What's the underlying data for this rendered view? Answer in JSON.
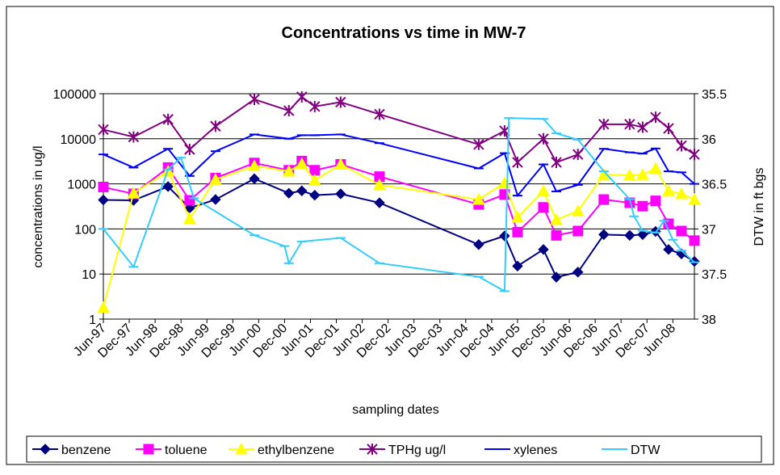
{
  "chart_data": {
    "type": "line",
    "title": "Concentrations vs time in MW-7",
    "x_label": "sampling dates",
    "y_label": "concentrations in ug/l",
    "y2_label": "DTW in ft bgs",
    "log_scale": true,
    "grid": true,
    "legend": "bottom",
    "xlim": [
      "Jun-97",
      "Nov-08"
    ],
    "xticks": [
      "Jun-97",
      "Dec-97",
      "Jun-98",
      "Dec-98",
      "Jun-99",
      "Dec-99",
      "Jun-00",
      "Dec-00",
      "Jun-01",
      "Dec-01",
      "Jun-02",
      "Dec-02",
      "Jun-03",
      "Dec-03",
      "Jun-04",
      "Dec-04",
      "Jun-05",
      "Dec-05",
      "Jun-06",
      "Dec-06",
      "Jun-07",
      "Dec-07",
      "Jun-08"
    ],
    "ylim": [
      1,
      100000
    ],
    "yticks": [
      1,
      10,
      100,
      1000,
      10000,
      100000
    ],
    "y2lim": [
      38,
      35.5
    ],
    "y2ticks": [
      35.5,
      36,
      36.5,
      37,
      37.5,
      38
    ],
    "series": [
      {
        "name": "benzene",
        "color": "#000080",
        "marker": "diamond",
        "x": [
          "Jun-97",
          "Jan-98",
          "Sep-98",
          "Feb-99",
          "Aug-99",
          "May-00",
          "Jan-01",
          "Apr-01",
          "Jul-01",
          "Jan-02",
          "Oct-02",
          "Sep-04",
          "Mar-05",
          "Jun-05",
          "Dec-05",
          "Mar-06",
          "Aug-06",
          "Feb-07",
          "Aug-07",
          "Nov-07",
          "Feb-08",
          "May-08",
          "Aug-08",
          "Nov-08"
        ],
        "values": [
          440,
          430,
          870,
          290,
          450,
          1300,
          620,
          700,
          560,
          600,
          380,
          45,
          70,
          15,
          35,
          8.5,
          11,
          75,
          72,
          75,
          88,
          35,
          28,
          19
        ]
      },
      {
        "name": "toluene",
        "color": "#ff00ff",
        "marker": "square",
        "x": [
          "Jun-97",
          "Jan-98",
          "Sep-98",
          "Feb-99",
          "Aug-99",
          "May-00",
          "Jan-01",
          "Apr-01",
          "Jul-01",
          "Jan-02",
          "Oct-02",
          "Sep-04",
          "Mar-05",
          "Jun-05",
          "Dec-05",
          "Mar-06",
          "Aug-06",
          "Feb-07",
          "Aug-07",
          "Nov-07",
          "Feb-08",
          "May-08",
          "Aug-08",
          "Nov-08"
        ],
        "values": [
          850,
          600,
          2300,
          430,
          1350,
          2900,
          2000,
          3200,
          2000,
          2700,
          1450,
          350,
          580,
          85,
          300,
          72,
          90,
          450,
          380,
          320,
          420,
          130,
          90,
          55
        ]
      },
      {
        "name": "ethylbenzene",
        "color": "#ffff00",
        "marker": "triangle",
        "x": [
          "Jun-97",
          "Jan-98",
          "Sep-98",
          "Feb-99",
          "Aug-99",
          "May-00",
          "Jan-01",
          "Apr-01",
          "Jul-01",
          "Jan-02",
          "Oct-02",
          "Sep-04",
          "Mar-05",
          "Jun-05",
          "Dec-05",
          "Mar-06",
          "Aug-06",
          "Feb-07",
          "Aug-07",
          "Nov-07",
          "Feb-08",
          "May-08",
          "Aug-08",
          "Nov-08"
        ],
        "values": [
          1.8,
          620,
          1900,
          170,
          1250,
          2500,
          1900,
          2800,
          1200,
          2700,
          950,
          450,
          1050,
          180,
          700,
          160,
          250,
          1600,
          1550,
          1600,
          2200,
          700,
          600,
          450
        ]
      },
      {
        "name": "TPHg ug/l",
        "color": "#800080",
        "marker": "star",
        "x": [
          "Jun-97",
          "Jan-98",
          "Sep-98",
          "Feb-99",
          "Aug-99",
          "May-00",
          "Jan-01",
          "Apr-01",
          "Jul-01",
          "Jan-02",
          "Oct-02",
          "Sep-04",
          "Mar-05",
          "Jun-05",
          "Dec-05",
          "Mar-06",
          "Aug-06",
          "Feb-07",
          "Aug-07",
          "Nov-07",
          "Feb-08",
          "May-08",
          "Aug-08",
          "Nov-08"
        ],
        "values": [
          16000,
          11000,
          27000,
          5800,
          19000,
          75000,
          42000,
          85000,
          52000,
          65000,
          35000,
          7500,
          15000,
          3000,
          10000,
          3000,
          4500,
          21000,
          21000,
          18000,
          30000,
          17000,
          7000,
          4500
        ]
      },
      {
        "name": "xylenes",
        "color": "#0000ff",
        "marker": "dash",
        "x": [
          "Jun-97",
          "Jan-98",
          "Sep-98",
          "Feb-99",
          "Aug-99",
          "May-00",
          "Jan-01",
          "Apr-01",
          "Jul-01",
          "Jan-02",
          "Oct-02",
          "Sep-04",
          "Mar-05",
          "Jun-05",
          "Dec-05",
          "Mar-06",
          "Aug-06",
          "Feb-07",
          "Aug-07",
          "Nov-07",
          "Feb-08",
          "May-08",
          "Aug-08",
          "Nov-08"
        ],
        "values": [
          4500,
          2300,
          6000,
          1500,
          5300,
          12500,
          10000,
          12000,
          12000,
          12500,
          8000,
          2200,
          4800,
          550,
          2700,
          680,
          950,
          6000,
          5000,
          4700,
          6100,
          1900,
          1800,
          1000
        ]
      },
      {
        "name": "DTW",
        "color": "#33ccff",
        "marker": "dash",
        "axis": "y2",
        "x": [
          "Jun-97",
          "Jan-98",
          "Sep-98",
          "Dec-98",
          "Mar-99",
          "May-00",
          "Dec-00",
          "Jan-01",
          "Apr-01",
          "Jan-02",
          "Oct-02",
          "Sep-04",
          "Mar-05",
          "Apr-05",
          "Dec-05",
          "Mar-06",
          "Aug-06",
          "Feb-07",
          "Aug-07",
          "Sep-07",
          "Nov-07",
          "Feb-08",
          "Apr-08",
          "Jun-08",
          "Aug-08",
          "Nov-08"
        ],
        "values": [
          37.0,
          37.42,
          36.34,
          36.21,
          36.66,
          37.07,
          37.19,
          37.38,
          37.14,
          37.1,
          37.38,
          37.53,
          37.69,
          35.77,
          35.78,
          35.94,
          36.01,
          36.36,
          36.67,
          36.86,
          37.02,
          37.04,
          36.91,
          37.12,
          37.24,
          37.37
        ]
      }
    ]
  }
}
